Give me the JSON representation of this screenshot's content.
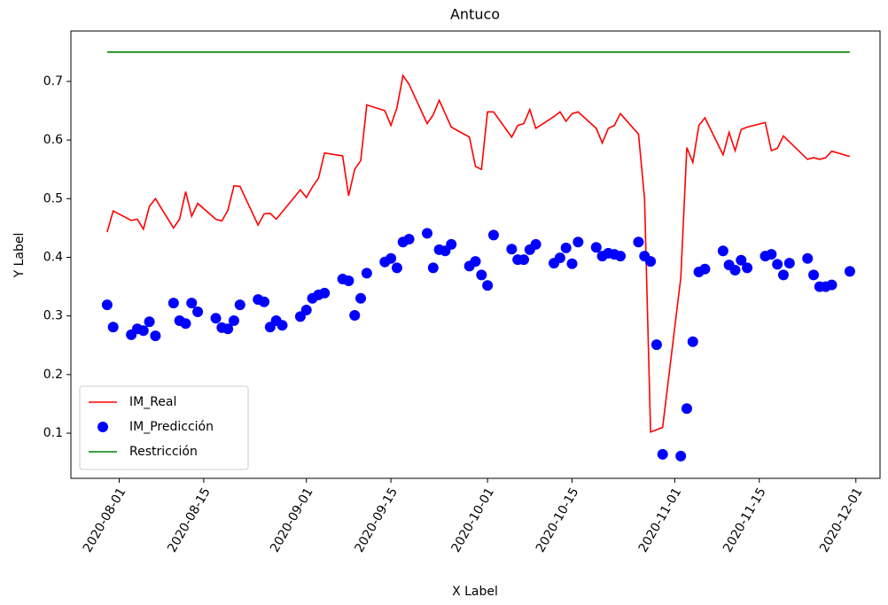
{
  "chart_data": {
    "type": "line",
    "title": "Antuco",
    "x_label": "X Label",
    "y_label": "Y Label",
    "xlim": [
      "2020-07-24",
      "2020-12-05"
    ],
    "xticks": [
      "2020-08-01",
      "2020-08-15",
      "2020-09-01",
      "2020-09-15",
      "2020-10-01",
      "2020-10-15",
      "2020-11-01",
      "2020-11-15",
      "2020-12-01"
    ],
    "ylim": [
      0.023,
      0.786
    ],
    "yticks": [
      0.1,
      0.2,
      0.3,
      0.4,
      0.5,
      0.6,
      0.7
    ],
    "legend": "lower left",
    "series": [
      {
        "name": "IM_Real",
        "color": "#ff0000",
        "mark": "line",
        "x": [
          "2020-07-30",
          "2020-07-31",
          "2020-08-03",
          "2020-08-04",
          "2020-08-05",
          "2020-08-06",
          "2020-08-07",
          "2020-08-10",
          "2020-08-11",
          "2020-08-12",
          "2020-08-13",
          "2020-08-14",
          "2020-08-17",
          "2020-08-18",
          "2020-08-19",
          "2020-08-20",
          "2020-08-21",
          "2020-08-24",
          "2020-08-25",
          "2020-08-26",
          "2020-08-27",
          "2020-08-31",
          "2020-09-01",
          "2020-09-02",
          "2020-09-03",
          "2020-09-04",
          "2020-09-07",
          "2020-09-08",
          "2020-09-09",
          "2020-09-10",
          "2020-09-11",
          "2020-09-14",
          "2020-09-15",
          "2020-09-16",
          "2020-09-17",
          "2020-09-18",
          "2020-09-21",
          "2020-09-22",
          "2020-09-23",
          "2020-09-25",
          "2020-09-28",
          "2020-09-29",
          "2020-09-30",
          "2020-10-01",
          "2020-10-02",
          "2020-10-05",
          "2020-10-06",
          "2020-10-07",
          "2020-10-08",
          "2020-10-09",
          "2020-10-12",
          "2020-10-13",
          "2020-10-14",
          "2020-10-15",
          "2020-10-16",
          "2020-10-19",
          "2020-10-20",
          "2020-10-21",
          "2020-10-22",
          "2020-10-23",
          "2020-10-26",
          "2020-10-27",
          "2020-10-28",
          "2020-10-29",
          "2020-10-30",
          "2020-11-02",
          "2020-11-03",
          "2020-11-04",
          "2020-11-05",
          "2020-11-06",
          "2020-11-09",
          "2020-11-10",
          "2020-11-11",
          "2020-11-12",
          "2020-11-13",
          "2020-11-16",
          "2020-11-17",
          "2020-11-18",
          "2020-11-19",
          "2020-11-23",
          "2020-11-24",
          "2020-11-25",
          "2020-11-26",
          "2020-11-27",
          "2020-11-30"
        ],
        "values": [
          0.443,
          0.479,
          0.463,
          0.465,
          0.448,
          0.487,
          0.5,
          0.45,
          0.465,
          0.512,
          0.47,
          0.492,
          0.465,
          0.462,
          0.48,
          0.522,
          0.521,
          0.455,
          0.474,
          0.475,
          0.465,
          0.515,
          0.502,
          0.52,
          0.535,
          0.578,
          0.573,
          0.505,
          0.55,
          0.565,
          0.66,
          0.65,
          0.625,
          0.655,
          0.71,
          0.695,
          0.628,
          0.643,
          0.668,
          0.622,
          0.605,
          0.555,
          0.55,
          0.648,
          0.648,
          0.605,
          0.625,
          0.628,
          0.652,
          0.62,
          0.64,
          0.648,
          0.632,
          0.645,
          0.648,
          0.62,
          0.595,
          0.62,
          0.625,
          0.645,
          0.61,
          0.5,
          0.102,
          0.106,
          0.11,
          0.365,
          0.587,
          0.562,
          0.625,
          0.638,
          0.575,
          0.613,
          0.582,
          0.618,
          0.622,
          0.63,
          0.582,
          0.586,
          0.607,
          0.567,
          0.57,
          0.567,
          0.57,
          0.581,
          0.572
        ]
      },
      {
        "name": "IM_Predicción",
        "color": "#0000ff",
        "mark": "scatter",
        "x": [
          "2020-07-30",
          "2020-07-31",
          "2020-08-03",
          "2020-08-04",
          "2020-08-05",
          "2020-08-06",
          "2020-08-07",
          "2020-08-10",
          "2020-08-11",
          "2020-08-12",
          "2020-08-13",
          "2020-08-14",
          "2020-08-17",
          "2020-08-18",
          "2020-08-19",
          "2020-08-20",
          "2020-08-21",
          "2020-08-24",
          "2020-08-25",
          "2020-08-26",
          "2020-08-27",
          "2020-08-28",
          "2020-08-31",
          "2020-09-01",
          "2020-09-02",
          "2020-09-03",
          "2020-09-04",
          "2020-09-07",
          "2020-09-08",
          "2020-09-09",
          "2020-09-10",
          "2020-09-11",
          "2020-09-14",
          "2020-09-15",
          "2020-09-16",
          "2020-09-17",
          "2020-09-18",
          "2020-09-21",
          "2020-09-22",
          "2020-09-23",
          "2020-09-24",
          "2020-09-25",
          "2020-09-28",
          "2020-09-29",
          "2020-09-30",
          "2020-10-01",
          "2020-10-02",
          "2020-10-05",
          "2020-10-06",
          "2020-10-07",
          "2020-10-08",
          "2020-10-09",
          "2020-10-12",
          "2020-10-13",
          "2020-10-14",
          "2020-10-15",
          "2020-10-16",
          "2020-10-19",
          "2020-10-20",
          "2020-10-21",
          "2020-10-22",
          "2020-10-23",
          "2020-10-26",
          "2020-10-27",
          "2020-10-28",
          "2020-10-29",
          "2020-10-30",
          "2020-11-02",
          "2020-11-03",
          "2020-11-04",
          "2020-11-05",
          "2020-11-06",
          "2020-11-09",
          "2020-11-10",
          "2020-11-11",
          "2020-11-12",
          "2020-11-13",
          "2020-11-16",
          "2020-11-17",
          "2020-11-18",
          "2020-11-19",
          "2020-11-20",
          "2020-11-23",
          "2020-11-24",
          "2020-11-25",
          "2020-11-26",
          "2020-11-27",
          "2020-11-30"
        ],
        "values": [
          0.319,
          0.281,
          0.268,
          0.278,
          0.275,
          0.29,
          0.266,
          0.322,
          0.292,
          0.287,
          0.322,
          0.307,
          0.296,
          0.28,
          0.278,
          0.292,
          0.319,
          0.328,
          0.324,
          0.281,
          0.292,
          0.284,
          0.299,
          0.31,
          0.33,
          0.336,
          0.339,
          0.363,
          0.36,
          0.301,
          0.33,
          0.373,
          0.392,
          0.398,
          0.382,
          0.426,
          0.431,
          0.441,
          0.382,
          0.413,
          0.411,
          0.422,
          0.385,
          0.393,
          0.37,
          0.352,
          0.438,
          0.414,
          0.396,
          0.396,
          0.413,
          0.422,
          0.39,
          0.399,
          0.416,
          0.389,
          0.426,
          0.417,
          0.402,
          0.407,
          0.405,
          0.402,
          0.426,
          0.402,
          0.393,
          0.251,
          0.064,
          0.061,
          0.142,
          0.256,
          0.375,
          0.38,
          0.411,
          0.387,
          0.378,
          0.395,
          0.382,
          0.402,
          0.405,
          0.388,
          0.37,
          0.39,
          0.398,
          0.37,
          0.35,
          0.35,
          0.353,
          0.376
        ]
      },
      {
        "name": "Restricción",
        "color": "#008000",
        "mark": "line",
        "x": [
          "2020-07-30",
          "2020-11-30"
        ],
        "values": [
          0.75,
          0.75
        ]
      }
    ]
  }
}
